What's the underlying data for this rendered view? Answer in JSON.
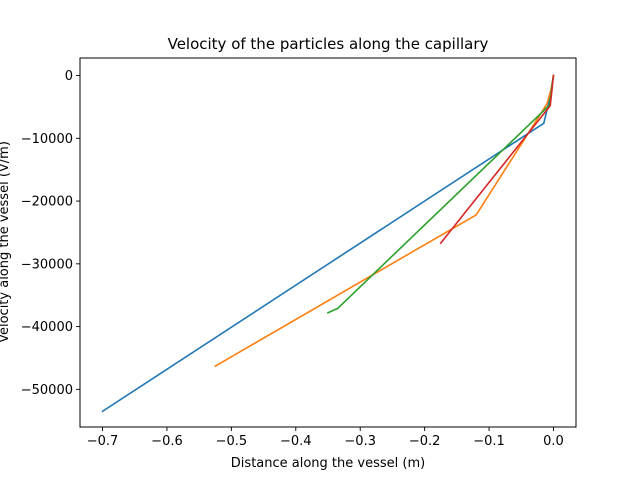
{
  "chart_data": {
    "type": "line",
    "title": "Velocity of the particles along the capillary",
    "xlabel": "Distance along the vessel (m)",
    "ylabel": "Velocity along the vessel (V/m)",
    "xlim": [
      -0.735,
      0.035
    ],
    "ylim": [
      -56000,
      2800
    ],
    "xticks": [
      -0.7,
      -0.6,
      -0.5,
      -0.4,
      -0.3,
      -0.2,
      -0.1,
      0.0
    ],
    "xtick_labels": [
      "−0.7",
      "−0.6",
      "−0.5",
      "−0.4",
      "−0.3",
      "−0.2",
      "−0.1",
      "0.0"
    ],
    "yticks": [
      0,
      -10000,
      -20000,
      -30000,
      -40000,
      -50000
    ],
    "ytick_labels": [
      "0",
      "−10000",
      "−20000",
      "−30000",
      "−40000",
      "−50000"
    ],
    "grid": false,
    "series": [
      {
        "color": "#1f77b4",
        "x": [
          -0.7,
          -0.015,
          -0.007,
          -0.003,
          -0.001,
          0.0
        ],
        "y": [
          -53500,
          -7600,
          -4200,
          -2100,
          -700,
          0
        ]
      },
      {
        "color": "#ff7f0e",
        "x": [
          -0.525,
          -0.12,
          -0.01,
          -0.004,
          -0.001,
          0.0
        ],
        "y": [
          -46300,
          -22200,
          -4500,
          -2300,
          -700,
          0
        ]
      },
      {
        "color": "#2ca02c",
        "x": [
          -0.35,
          -0.335,
          -0.006,
          -0.002,
          0.0
        ],
        "y": [
          -37800,
          -37100,
          -4700,
          -1300,
          0
        ]
      },
      {
        "color": "#d62728",
        "x": [
          -0.175,
          -0.005,
          -0.002,
          0.0
        ],
        "y": [
          -26700,
          -4800,
          -2000,
          0
        ]
      }
    ]
  }
}
